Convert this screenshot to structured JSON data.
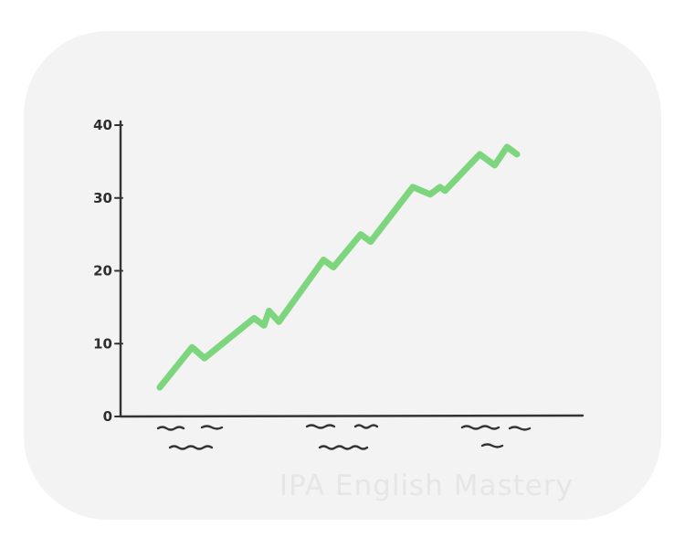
{
  "chart_data": {
    "type": "line",
    "title": "",
    "xlabel": "",
    "ylabel": "",
    "ylim": [
      0,
      40
    ],
    "yticks": [
      "0",
      "10",
      "20",
      "30",
      "40"
    ],
    "grid": false,
    "legend": "none",
    "series": [
      {
        "color": "#7dd67d",
        "x": [
          0,
          13,
          18,
          38,
          42,
          44,
          48,
          66,
          70,
          81,
          85,
          102,
          109,
          113,
          115,
          129,
          135,
          140,
          144
        ],
        "y": [
          4,
          9.5,
          8,
          13.5,
          12.5,
          14.5,
          13,
          21.5,
          20.5,
          25,
          24,
          31.5,
          30.5,
          31.5,
          31,
          36,
          34.5,
          37,
          36
        ]
      }
    ],
    "x_category_labels": "illegible scribbles"
  },
  "watermark": "IPA English Mastery"
}
